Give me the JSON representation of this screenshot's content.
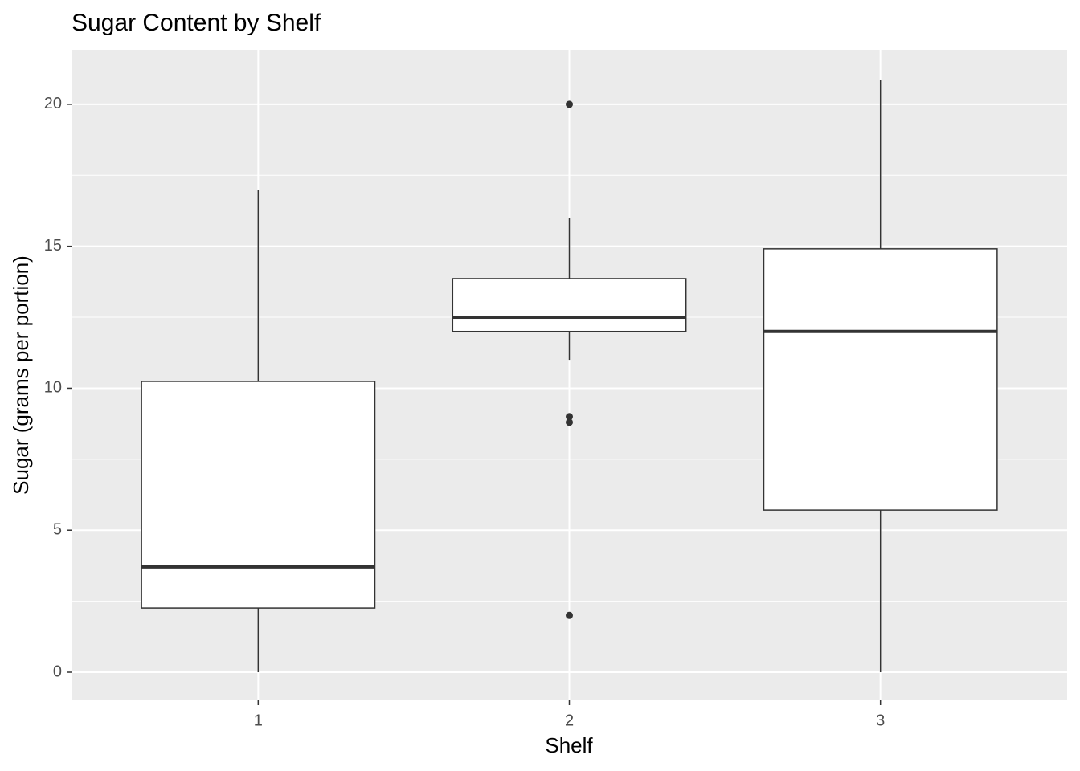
{
  "chart_data": {
    "type": "boxplot",
    "title": "Sugar Content by Shelf",
    "x_label": "Shelf",
    "y_label": "Sugar (grams per portion)",
    "categories": [
      "1",
      "2",
      "3"
    ],
    "boxes": [
      {
        "min": 0,
        "q1": 2.26,
        "median": 3.71,
        "q3": 10.24,
        "max": 17,
        "outliers": []
      },
      {
        "min": 11,
        "q1": 12,
        "median": 12.5,
        "q3": 13.86,
        "max": 16,
        "outliers": [
          20,
          9,
          8.8,
          2
        ]
      },
      {
        "min": 0,
        "q1": 5.71,
        "median": 12,
        "q3": 14.91,
        "max": 20.85,
        "outliers": []
      }
    ],
    "fill": "#ffffff",
    "line_color": "#333333",
    "ylim": [
      -0.99,
      21.92
    ],
    "yticks": [
      0,
      5,
      10,
      15,
      20
    ],
    "grid": true
  }
}
